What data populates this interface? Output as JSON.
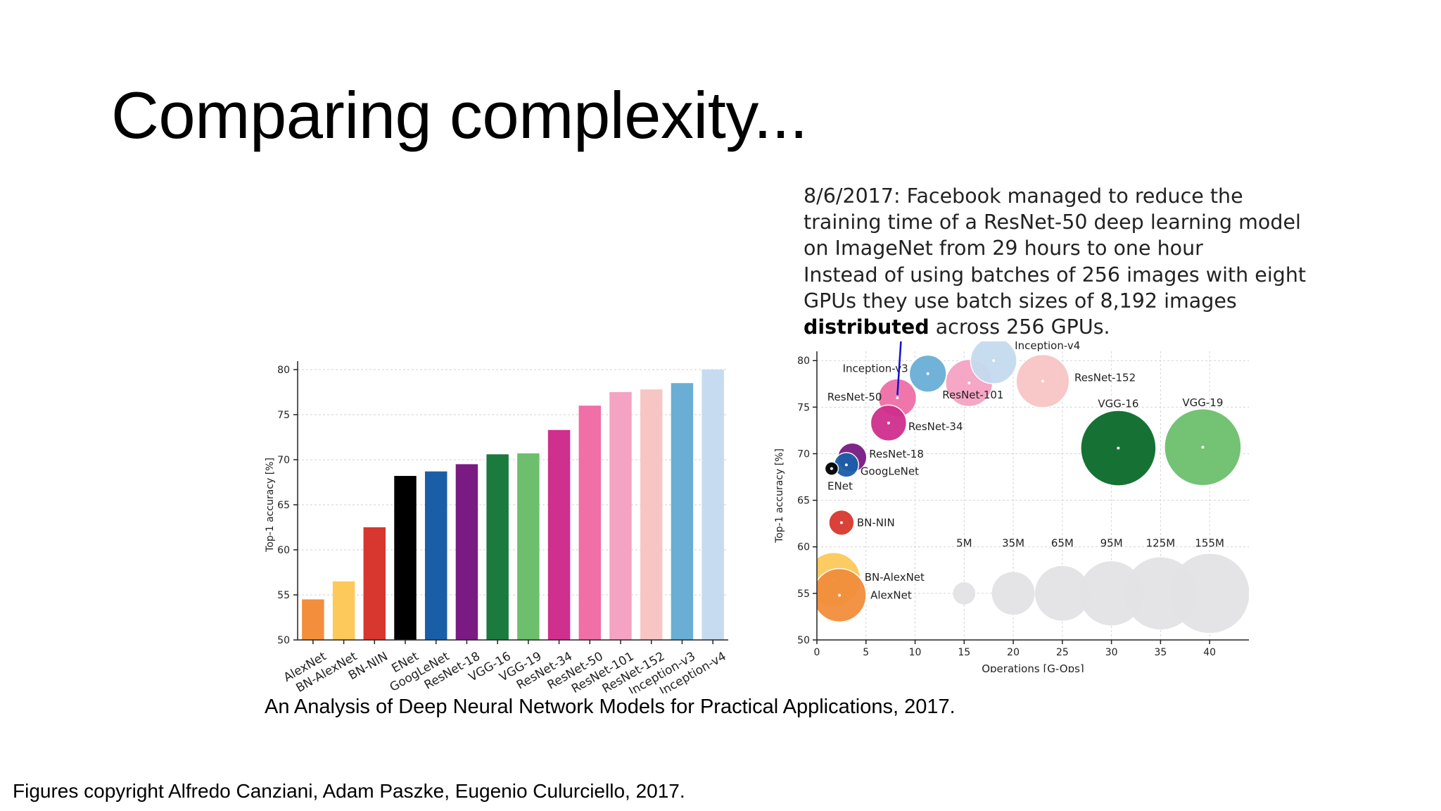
{
  "slide": {
    "title": "Comparing complexity...",
    "note_lines": [
      "8/6/2017: Facebook managed to reduce the",
      "training time of a ResNet-50 deep learning model",
      "on ImageNet from 29 hours to one hour",
      "Instead of using batches of 256 images with eight",
      "GPUs they use batch sizes of 8,192 images"
    ],
    "note_bold": "distributed",
    "note_tail": " across 256 GPUs.",
    "caption": "An Analysis of Deep Neural Network Models for Practical Applications,  2017.",
    "copyright": "Figures copyright Alfredo Canziani, Adam Paszke, Eugenio Culurciello, 2017."
  },
  "chart_data": [
    {
      "type": "bar",
      "ylabel": "Top-1 accuracy [%]",
      "ylim": [
        50,
        80
      ],
      "yticks": [
        50,
        55,
        60,
        65,
        70,
        75,
        80
      ],
      "grid": true,
      "categories": [
        "AlexNet",
        "BN-AlexNet",
        "BN-NIN",
        "ENet",
        "GoogLeNet",
        "ResNet-18",
        "VGG-16",
        "VGG-19",
        "ResNet-34",
        "ResNet-50",
        "ResNet-101",
        "ResNet-152",
        "Inception-v3",
        "Inception-v4"
      ],
      "values": [
        54.5,
        56.5,
        62.5,
        68.2,
        68.7,
        69.5,
        70.6,
        70.7,
        73.3,
        76.0,
        77.5,
        77.8,
        78.5,
        80.0
      ],
      "colors": [
        "#f28e3c",
        "#fcc95a",
        "#d7372f",
        "#000000",
        "#1a5ea8",
        "#7a1a83",
        "#1b7a3e",
        "#6dbf6d",
        "#cf2f8d",
        "#ef6fa6",
        "#f5a3c2",
        "#f8c5c5",
        "#6aaed6",
        "#c6dbef"
      ]
    },
    {
      "type": "scatter",
      "xlabel": "Operations [G-Ops]",
      "ylabel": "Top-1 accuracy [%]",
      "xlim": [
        0,
        44
      ],
      "ylim": [
        50,
        81
      ],
      "xticks": [
        0,
        5,
        10,
        15,
        20,
        25,
        30,
        35,
        40
      ],
      "yticks": [
        50,
        55,
        60,
        65,
        70,
        75,
        80
      ],
      "grid": true,
      "points": [
        {
          "name": "AlexNet",
          "x": 2.3,
          "y": 54.8,
          "params_m": 61,
          "color": "#f28e3c"
        },
        {
          "name": "BN-AlexNet",
          "x": 1.7,
          "y": 56.5,
          "params_m": 62,
          "color": "#fcc95a"
        },
        {
          "name": "BN-NIN",
          "x": 2.5,
          "y": 62.6,
          "params_m": 7.6,
          "color": "#d7372f"
        },
        {
          "name": "ENet",
          "x": 1.5,
          "y": 68.4,
          "params_m": 0.4,
          "color": "#000000"
        },
        {
          "name": "GoogLeNet",
          "x": 3.0,
          "y": 68.8,
          "params_m": 7,
          "color": "#1a5ea8"
        },
        {
          "name": "ResNet-18",
          "x": 3.6,
          "y": 69.6,
          "params_m": 11.7,
          "color": "#7a1a83"
        },
        {
          "name": "ResNet-34",
          "x": 7.3,
          "y": 73.3,
          "params_m": 21.8,
          "color": "#cf2f8d"
        },
        {
          "name": "ResNet-50",
          "x": 8.2,
          "y": 76.0,
          "params_m": 25.6,
          "color": "#ef6fa6"
        },
        {
          "name": "Inception-v3",
          "x": 11.3,
          "y": 78.6,
          "params_m": 23.8,
          "color": "#6aaed6"
        },
        {
          "name": "ResNet-101",
          "x": 15.5,
          "y": 77.6,
          "params_m": 44.5,
          "color": "#f5a3c2"
        },
        {
          "name": "Inception-v4",
          "x": 18.0,
          "y": 80.0,
          "params_m": 42.7,
          "color": "#c6dbef"
        },
        {
          "name": "ResNet-152",
          "x": 23.0,
          "y": 77.8,
          "params_m": 60.2,
          "color": "#f8c5c5"
        },
        {
          "name": "VGG-16",
          "x": 30.7,
          "y": 70.6,
          "params_m": 138,
          "color": "#0a6b2a"
        },
        {
          "name": "VGG-19",
          "x": 39.3,
          "y": 70.7,
          "params_m": 144,
          "color": "#6dbf6d"
        }
      ],
      "size_legend": [
        {
          "label": "5M",
          "x": 15,
          "params_m": 5
        },
        {
          "label": "35M",
          "x": 20,
          "params_m": 35
        },
        {
          "label": "65M",
          "x": 25,
          "params_m": 65
        },
        {
          "label": "95M",
          "x": 30,
          "params_m": 95
        },
        {
          "label": "125M",
          "x": 35,
          "params_m": 125
        },
        {
          "label": "155M",
          "x": 40,
          "params_m": 155
        }
      ],
      "size_legend_y": 55,
      "size_legend_color": "#e3e3e6"
    }
  ]
}
